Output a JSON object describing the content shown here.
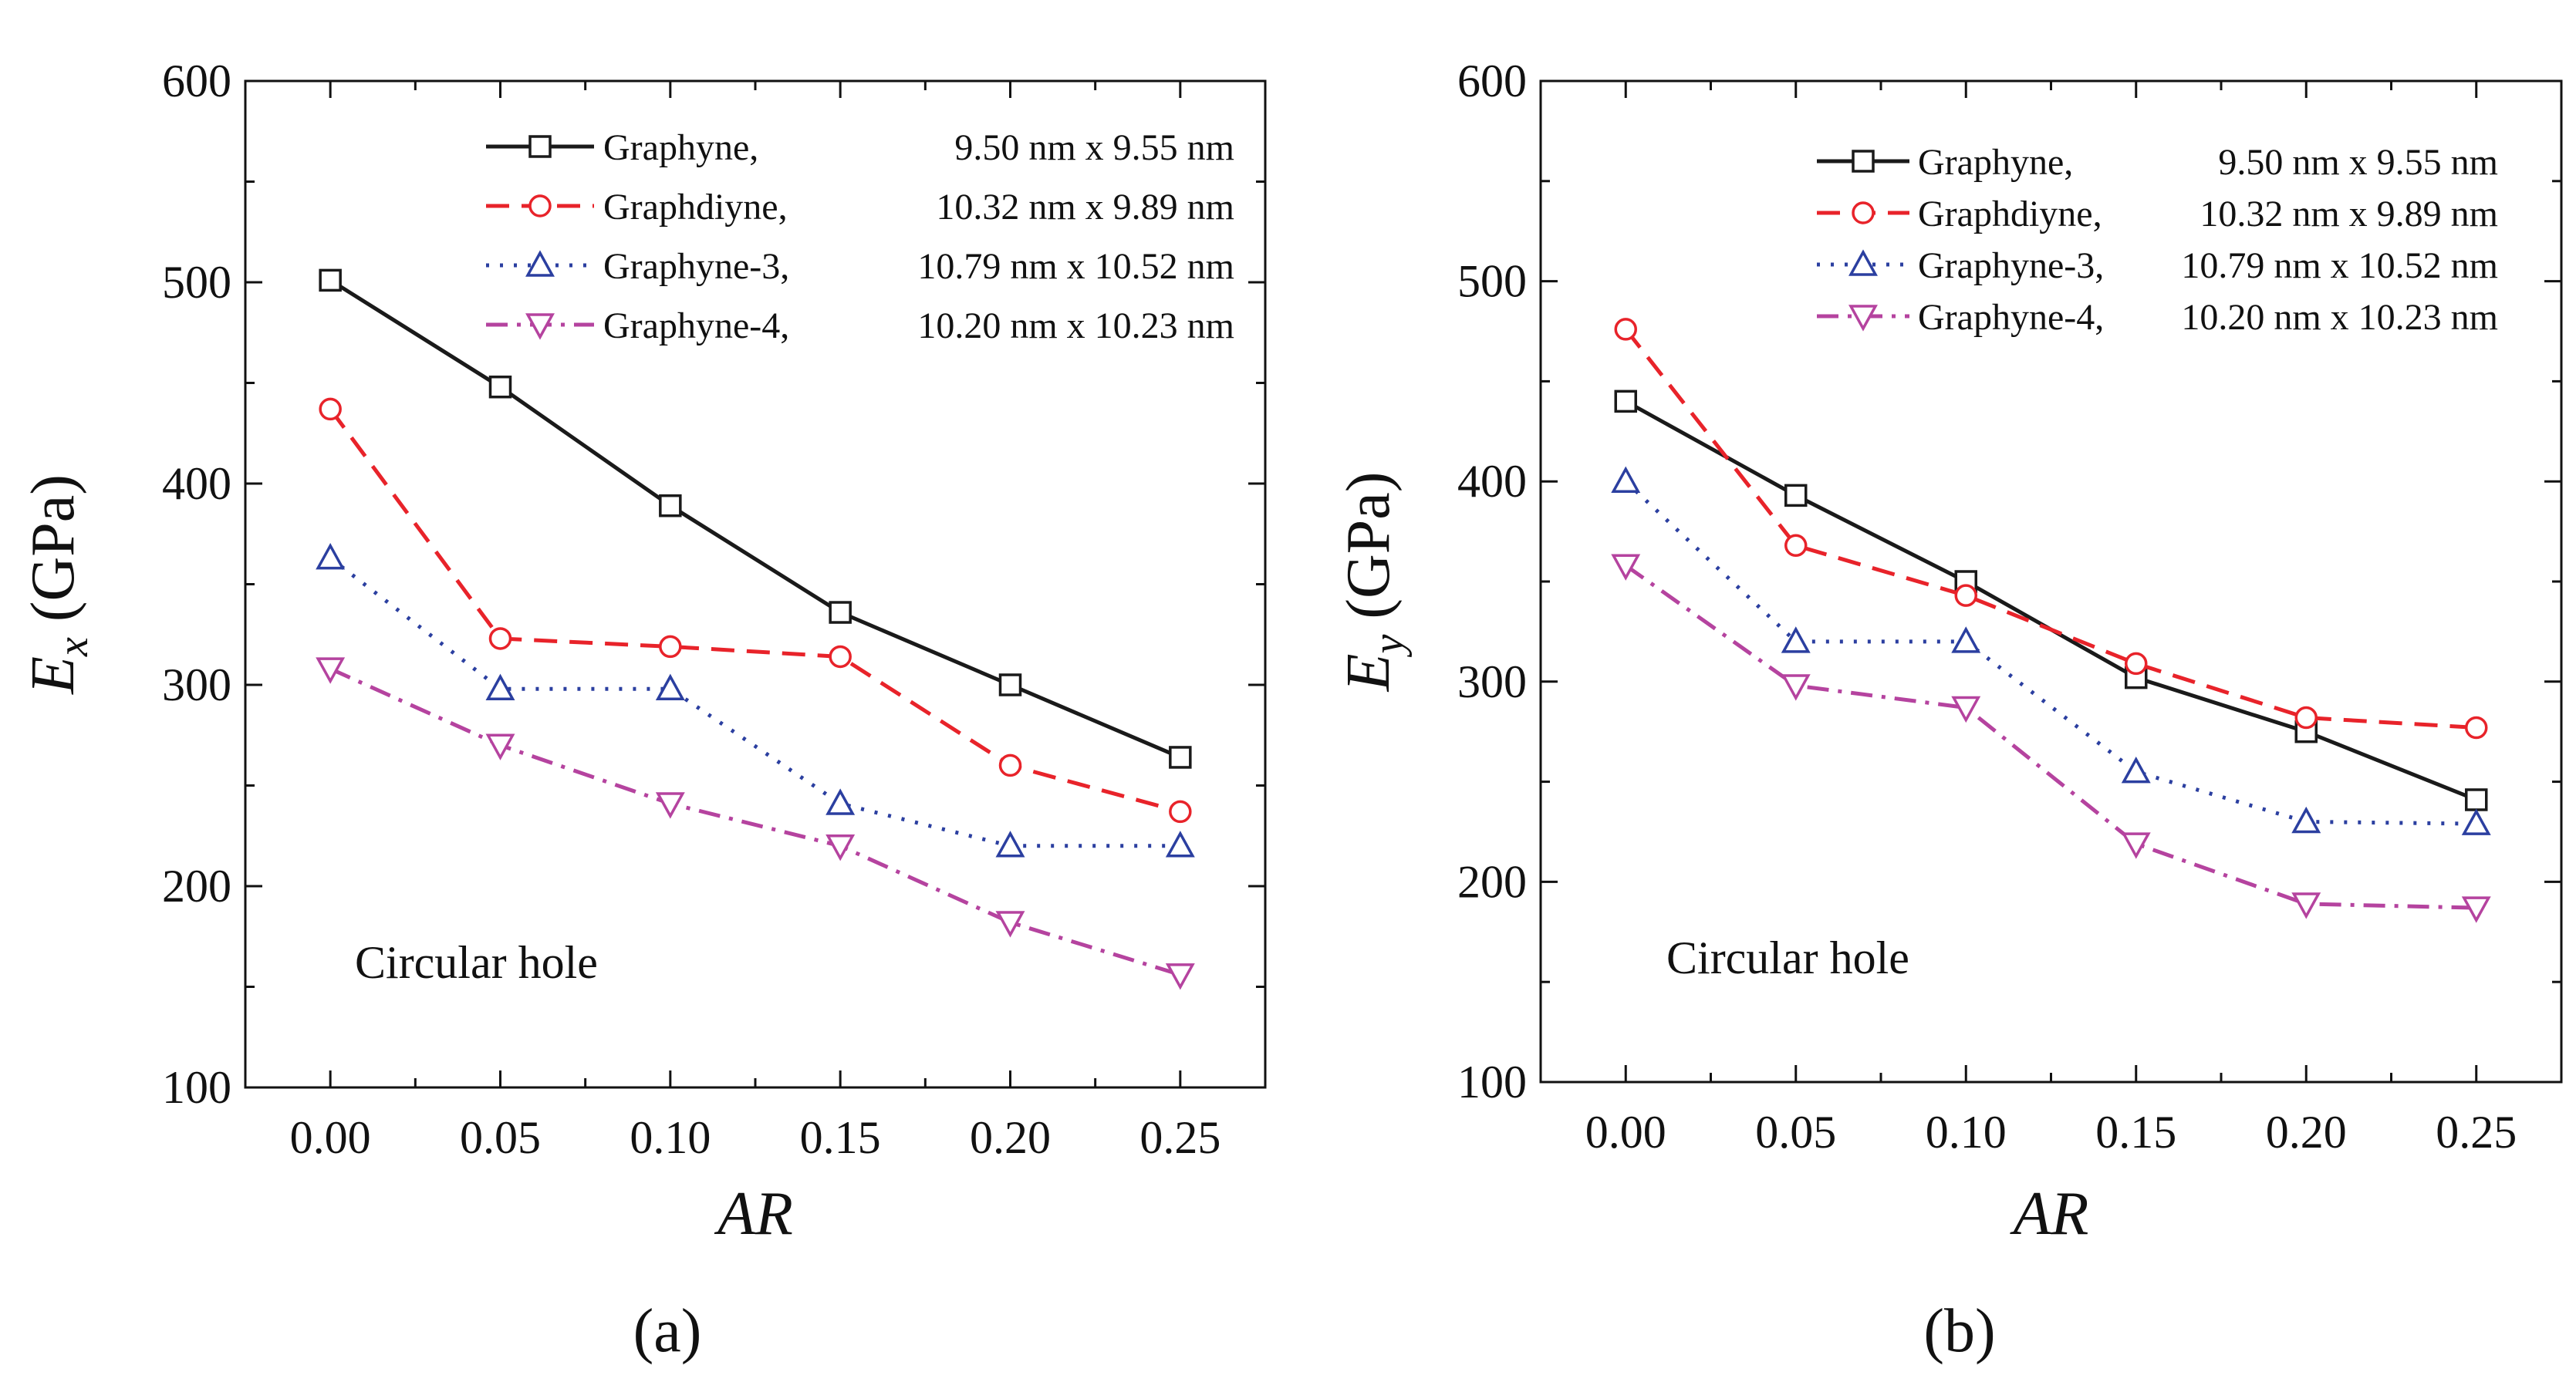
{
  "chart_data": [
    {
      "type": "line",
      "panel_label": "(a)",
      "xlabel": "AR",
      "ylabel": {
        "symbol": "E",
        "subscript": "x",
        "unit": "(GPa)"
      },
      "annotation": "Circular hole",
      "xlim": [
        -0.025,
        0.275
      ],
      "ylim": [
        100,
        600
      ],
      "xticks": [
        0.0,
        0.05,
        0.1,
        0.15,
        0.2,
        0.25
      ],
      "xtick_labels": [
        "0.00",
        "0.05",
        "0.10",
        "0.15",
        "0.20",
        "0.25"
      ],
      "yticks": [
        100,
        200,
        300,
        400,
        500,
        600
      ],
      "ytick_labels": [
        "100",
        "200",
        "300",
        "400",
        "500",
        "600"
      ],
      "legend_position": "top-right",
      "x": [
        0.0,
        0.05,
        0.1,
        0.15,
        0.2,
        0.25
      ],
      "series": [
        {
          "name": "Graphyne",
          "material": "Graphyne,",
          "dims": "9.50 nm x   9.55 nm",
          "color": "#1a1a1a",
          "dash": "solid",
          "marker": "square",
          "values": [
            501,
            448,
            389,
            336,
            300,
            264
          ]
        },
        {
          "name": "Graphdiyne",
          "material": "Graphdiyne,",
          "dims": "10.32 nm x   9.89 nm",
          "color": "#e8232a",
          "dash": "dashed",
          "marker": "circle",
          "values": [
            437,
            323,
            319,
            314,
            260,
            237
          ]
        },
        {
          "name": "Graphyne-3",
          "material": "Graphyne-3,",
          "dims": "10.79 nm x 10.52 nm",
          "color": "#2b3fa0",
          "dash": "dotted",
          "marker": "triangle-up",
          "values": [
            363,
            298,
            298,
            241,
            220,
            220
          ]
        },
        {
          "name": "Graphyne-4",
          "material": "Graphyne-4,",
          "dims": "10.20 nm x 10.23 nm",
          "color": "#b5439f",
          "dash": "dashdot",
          "marker": "triangle-down",
          "values": [
            308,
            270,
            241,
            220,
            182,
            156
          ]
        }
      ]
    },
    {
      "type": "line",
      "panel_label": "(b)",
      "xlabel": "AR",
      "ylabel": {
        "symbol": "E",
        "subscript": "y",
        "unit": "(GPa)"
      },
      "annotation": "Circular hole",
      "xlim": [
        -0.025,
        0.275
      ],
      "ylim": [
        100,
        600
      ],
      "xticks": [
        0.0,
        0.05,
        0.1,
        0.15,
        0.2,
        0.25
      ],
      "xtick_labels": [
        "0.00",
        "0.05",
        "0.10",
        "0.15",
        "0.20",
        "0.25"
      ],
      "yticks": [
        100,
        200,
        300,
        400,
        500,
        600
      ],
      "ytick_labels": [
        "100",
        "200",
        "300",
        "400",
        "500",
        "600"
      ],
      "legend_position": "top-right",
      "x": [
        0.0,
        0.05,
        0.1,
        0.15,
        0.2,
        0.25
      ],
      "series": [
        {
          "name": "Graphyne",
          "material": "Graphyne,",
          "dims": "9.50 nm x   9.55 nm",
          "color": "#1a1a1a",
          "dash": "solid",
          "marker": "square",
          "values": [
            440,
            393,
            350,
            302,
            275,
            241
          ]
        },
        {
          "name": "Graphdiyne",
          "material": "Graphdiyne,",
          "dims": "10.32 nm x   9.89 nm",
          "color": "#e8232a",
          "dash": "dashed",
          "marker": "circle",
          "values": [
            476,
            368,
            343,
            309,
            282,
            277
          ]
        },
        {
          "name": "Graphyne-3",
          "material": "Graphyne-3,",
          "dims": "10.79 nm x 10.52 nm",
          "color": "#2b3fa0",
          "dash": "dotted",
          "marker": "triangle-up",
          "values": [
            400,
            320,
            320,
            255,
            230,
            229
          ]
        },
        {
          "name": "Graphyne-4",
          "material": "Graphyne-4,",
          "dims": "10.20 nm x 10.23 nm",
          "color": "#b5439f",
          "dash": "dashdot",
          "marker": "triangle-down",
          "values": [
            358,
            298,
            287,
            219,
            189,
            187
          ]
        }
      ]
    }
  ]
}
